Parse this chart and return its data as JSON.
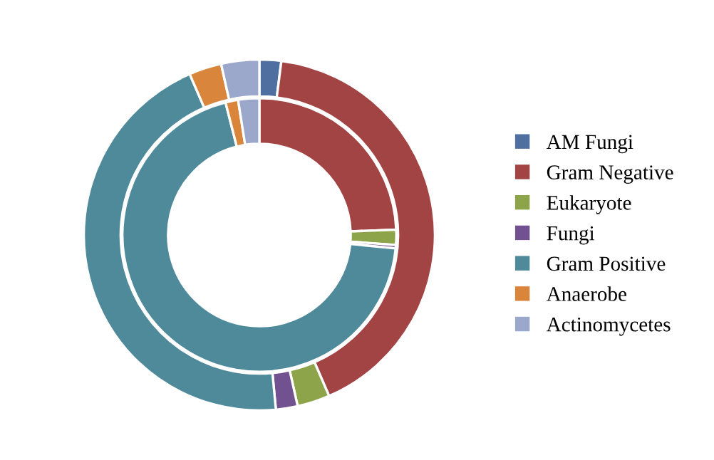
{
  "chart_data": {
    "type": "donut",
    "categories": [
      "AM Fungi",
      "Gram Negative",
      "Eukaryote",
      "Fungi",
      "Gram Positive",
      "Anaerobe",
      "Actinomycetes"
    ],
    "colors": [
      "#4f6fa0",
      "#a34444",
      "#8ea44a",
      "#71518f",
      "#4f8a9b",
      "#d9853b",
      "#9ba8cb"
    ],
    "series": [
      {
        "values": [
          2,
          41.5,
          3,
          2,
          45,
          3,
          3.5
        ]
      },
      {
        "values": [
          0,
          24.5,
          1.8,
          0.4,
          69.8,
          1.5,
          2.5
        ]
      }
    ],
    "legend": "right"
  }
}
